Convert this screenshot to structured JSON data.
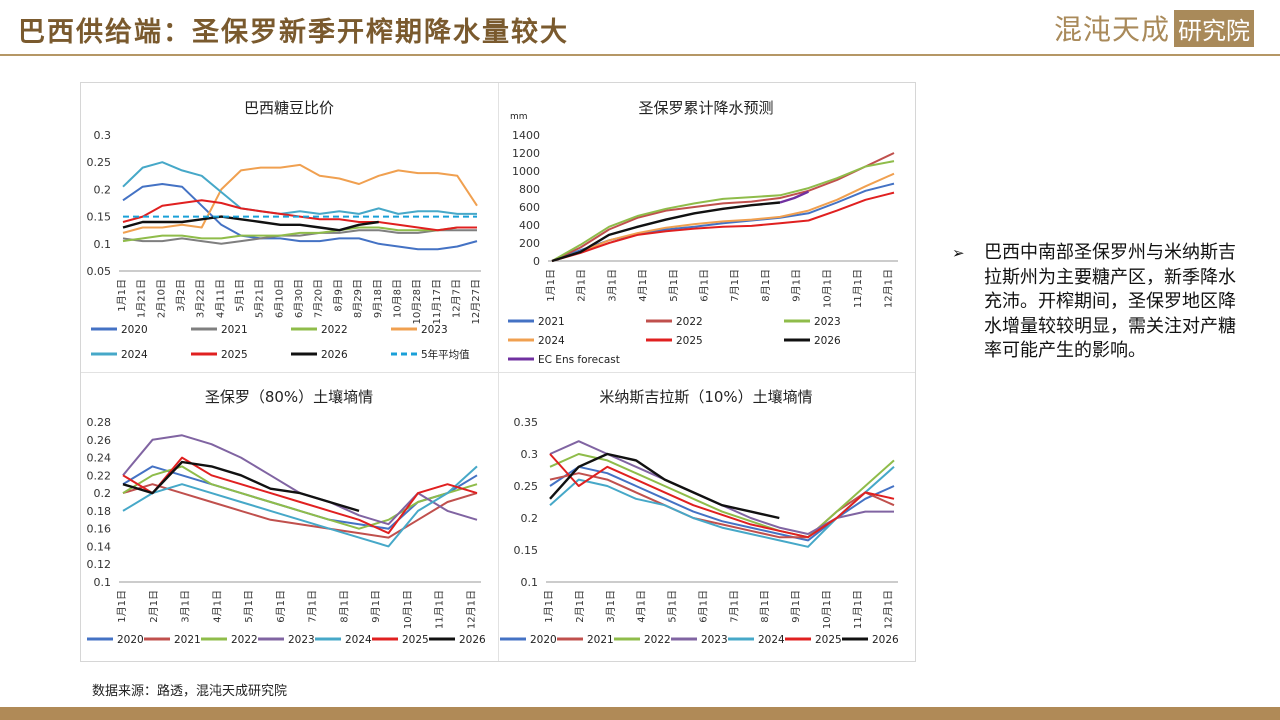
{
  "header": {
    "title": "巴西供给端：圣保罗新季开榨期降水量较大"
  },
  "logo": {
    "main_text": "混沌天成",
    "box_text": "研究院"
  },
  "sidebar": {
    "bullet": "➢",
    "text": "巴西中南部圣保罗州与米纳斯吉拉斯州为主要糖产区，新季降水充沛。开榨期间，圣保罗地区降水增量较较明显，需关注对产糖率可能产生的影响。"
  },
  "footer": {
    "source": "数据来源：路透，混沌天成研究院"
  },
  "colors": {
    "2020": "#4472c4",
    "2021": "#7f7f7f",
    "2022": "#8fbc4a",
    "2023": "#f0a050",
    "2024": "#46a8c8",
    "2025": "#e02020",
    "2026": "#111111",
    "avg5": "#1aa0d8",
    "ec": "#7030a0",
    "p2021": "#c0504d",
    "p2023": "#8064a2"
  },
  "chart_data": [
    {
      "type": "line",
      "title": "巴西糖豆比价",
      "xlabel": "",
      "ylabel": "",
      "ylim": [
        0.05,
        0.3
      ],
      "yticks": [
        "0.3",
        "0.25",
        "0.2",
        "0.15",
        "0.1",
        "0.05"
      ],
      "x_ticks": [
        "1月1日",
        "1月21日",
        "2月10日",
        "3月2日",
        "3月22日",
        "4月11日",
        "5月1日",
        "5月21日",
        "6月10日",
        "6月30日",
        "7月20日",
        "8月9日",
        "8月29日",
        "9月18日",
        "10月8日",
        "10月28日",
        "11月17日",
        "12月7日",
        "12月27日"
      ],
      "legend_position": "bottom",
      "series": [
        {
          "name": "2020",
          "color_key": "2020",
          "values": [
            0.18,
            0.205,
            0.21,
            0.205,
            0.17,
            0.135,
            0.115,
            0.11,
            0.11,
            0.105,
            0.105,
            0.11,
            0.11,
            0.1,
            0.095,
            0.09,
            0.09,
            0.095,
            0.105
          ]
        },
        {
          "name": "2021",
          "color_key": "2021",
          "values": [
            0.11,
            0.105,
            0.105,
            0.11,
            0.105,
            0.1,
            0.105,
            0.11,
            0.115,
            0.115,
            0.12,
            0.12,
            0.125,
            0.125,
            0.12,
            0.12,
            0.125,
            0.125,
            0.125
          ]
        },
        {
          "name": "2022",
          "color_key": "2022",
          "values": [
            0.105,
            0.11,
            0.115,
            0.115,
            0.11,
            0.11,
            0.115,
            0.115,
            0.115,
            0.12,
            0.12,
            0.125,
            0.13,
            0.13,
            0.125,
            0.125,
            0.125,
            0.13,
            0.13
          ]
        },
        {
          "name": "2023",
          "color_key": "2023",
          "values": [
            0.12,
            0.13,
            0.13,
            0.135,
            0.13,
            0.2,
            0.235,
            0.24,
            0.24,
            0.245,
            0.225,
            0.22,
            0.21,
            0.225,
            0.235,
            0.23,
            0.23,
            0.225,
            0.17
          ]
        },
        {
          "name": "2024",
          "color_key": "2024",
          "values": [
            0.205,
            0.24,
            0.25,
            0.235,
            0.225,
            0.195,
            0.165,
            0.16,
            0.155,
            0.16,
            0.155,
            0.16,
            0.155,
            0.165,
            0.155,
            0.16,
            0.16,
            0.155,
            0.155
          ]
        },
        {
          "name": "2025",
          "color_key": "2025",
          "values": [
            0.14,
            0.15,
            0.17,
            0.175,
            0.18,
            0.175,
            0.165,
            0.16,
            0.155,
            0.15,
            0.145,
            0.145,
            0.14,
            0.14,
            0.135,
            0.13,
            0.125,
            0.13,
            0.13
          ]
        },
        {
          "name": "2026",
          "color_key": "2026",
          "values": [
            0.13,
            0.14,
            0.14,
            0.14,
            0.145,
            0.15,
            0.145,
            0.14,
            0.135,
            0.135,
            0.13,
            0.125,
            0.135,
            0.14,
            null,
            null,
            null,
            null,
            null
          ]
        },
        {
          "name": "5年平均值",
          "color_key": "avg5",
          "dashed": true,
          "values": [
            0.15,
            0.15,
            0.15,
            0.15,
            0.15,
            0.15,
            0.15,
            0.15,
            0.15,
            0.15,
            0.15,
            0.15,
            0.15,
            0.15,
            0.15,
            0.15,
            0.15,
            0.15,
            0.15
          ]
        }
      ]
    },
    {
      "type": "line",
      "title": "圣保罗累计降水预测",
      "unit": "mm",
      "xlabel": "",
      "ylabel": "",
      "ylim": [
        0,
        1400
      ],
      "yticks": [
        "1400",
        "1200",
        "1000",
        "800",
        "600",
        "400",
        "200",
        "0"
      ],
      "x_ticks": [
        "1月1日",
        "2月1日",
        "3月1日",
        "4月1日",
        "5月1日",
        "6月1日",
        "7月1日",
        "8月1日",
        "9月1日",
        "10月1日",
        "11月1日",
        "12月1日"
      ],
      "legend_position": "bottom",
      "series": [
        {
          "name": "2021",
          "color_key": "2020",
          "values": [
            0,
            120,
            230,
            300,
            350,
            380,
            420,
            450,
            480,
            530,
            650,
            780,
            860
          ]
        },
        {
          "name": "2022",
          "color_key": "p2021",
          "values": [
            0,
            150,
            350,
            480,
            560,
            600,
            640,
            660,
            700,
            780,
            900,
            1050,
            1200
          ]
        },
        {
          "name": "2023",
          "color_key": "2022",
          "values": [
            0,
            180,
            380,
            500,
            580,
            640,
            690,
            710,
            730,
            810,
            920,
            1050,
            1110
          ]
        },
        {
          "name": "2024",
          "color_key": "2023",
          "values": [
            0,
            100,
            230,
            310,
            370,
            410,
            440,
            460,
            490,
            560,
            680,
            830,
            970
          ]
        },
        {
          "name": "2025",
          "color_key": "2025",
          "values": [
            0,
            90,
            200,
            290,
            330,
            360,
            380,
            390,
            420,
            450,
            560,
            680,
            760
          ]
        },
        {
          "name": "2026",
          "color_key": "2026",
          "values": [
            0,
            100,
            290,
            380,
            460,
            530,
            580,
            620,
            650,
            null,
            null,
            null,
            null
          ]
        },
        {
          "name": "EC Ens forecast",
          "color_key": "ec",
          "values": [
            null,
            null,
            null,
            null,
            null,
            null,
            null,
            null,
            650,
            null,
            null,
            null,
            null
          ],
          "tail": [
            [
              8,
              650
            ],
            [
              8.5,
              700
            ],
            [
              9,
              770
            ]
          ]
        }
      ]
    },
    {
      "type": "line",
      "title": "圣保罗（80%）土壤墒情",
      "xlabel": "",
      "ylabel": "",
      "ylim": [
        0.1,
        0.28
      ],
      "yticks": [
        "0.28",
        "0.26",
        "0.24",
        "0.22",
        "0.2",
        "0.18",
        "0.16",
        "0.14",
        "0.12",
        "0.1"
      ],
      "x_ticks": [
        "1月1日",
        "2月1日",
        "3月1日",
        "4月1日",
        "5月1日",
        "6月1日",
        "7月1日",
        "8月1日",
        "9月1日",
        "10月1日",
        "11月1日",
        "12月1日"
      ],
      "legend_position": "bottom",
      "series": [
        {
          "name": "2020",
          "color_key": "2020",
          "values": [
            0.21,
            0.23,
            0.22,
            0.21,
            0.2,
            0.19,
            0.18,
            0.17,
            0.165,
            0.16,
            0.19,
            0.2,
            0.22
          ]
        },
        {
          "name": "2021",
          "color_key": "p2021",
          "values": [
            0.2,
            0.21,
            0.2,
            0.19,
            0.18,
            0.17,
            0.165,
            0.16,
            0.155,
            0.15,
            0.17,
            0.19,
            0.2
          ]
        },
        {
          "name": "2022",
          "color_key": "2022",
          "values": [
            0.2,
            0.22,
            0.23,
            0.21,
            0.2,
            0.19,
            0.18,
            0.17,
            0.16,
            0.17,
            0.19,
            0.2,
            0.21
          ]
        },
        {
          "name": "2023",
          "color_key": "p2023",
          "values": [
            0.22,
            0.26,
            0.265,
            0.255,
            0.24,
            0.22,
            0.2,
            0.19,
            0.175,
            0.165,
            0.2,
            0.18,
            0.17
          ]
        },
        {
          "name": "2024",
          "color_key": "2024",
          "values": [
            0.18,
            0.2,
            0.21,
            0.2,
            0.19,
            0.18,
            0.17,
            0.16,
            0.15,
            0.14,
            0.18,
            0.2,
            0.23
          ]
        },
        {
          "name": "2025",
          "color_key": "2025",
          "values": [
            0.22,
            0.2,
            0.24,
            0.22,
            0.21,
            0.2,
            0.19,
            0.18,
            0.17,
            0.155,
            0.2,
            0.21,
            0.2
          ]
        },
        {
          "name": "2026",
          "color_key": "2026",
          "values": [
            0.21,
            0.2,
            0.235,
            0.23,
            0.22,
            0.205,
            0.2,
            0.19,
            0.18,
            null,
            null,
            null,
            null
          ]
        }
      ]
    },
    {
      "type": "line",
      "title": "米纳斯吉拉斯（10%）土壤墒情",
      "xlabel": "",
      "ylabel": "",
      "ylim": [
        0.1,
        0.35
      ],
      "yticks": [
        "0.35",
        "0.3",
        "0.25",
        "0.2",
        "0.15",
        "0.1"
      ],
      "x_ticks": [
        "1月1日",
        "2月1日",
        "3月1日",
        "4月1日",
        "5月1日",
        "6月1日",
        "7月1日",
        "8月1日",
        "9月1日",
        "10月1日",
        "11月1日",
        "12月1日"
      ],
      "legend_position": "bottom",
      "series": [
        {
          "name": "2020",
          "color_key": "2020",
          "values": [
            0.25,
            0.28,
            0.27,
            0.25,
            0.23,
            0.21,
            0.195,
            0.185,
            0.175,
            0.165,
            0.2,
            0.23,
            0.25
          ]
        },
        {
          "name": "2021",
          "color_key": "p2021",
          "values": [
            0.26,
            0.27,
            0.26,
            0.24,
            0.22,
            0.2,
            0.19,
            0.18,
            0.17,
            0.17,
            0.21,
            0.24,
            0.22
          ]
        },
        {
          "name": "2022",
          "color_key": "2022",
          "values": [
            0.28,
            0.3,
            0.29,
            0.27,
            0.25,
            0.23,
            0.21,
            0.195,
            0.18,
            0.17,
            0.21,
            0.25,
            0.29
          ]
        },
        {
          "name": "2023",
          "color_key": "p2023",
          "values": [
            0.3,
            0.32,
            0.3,
            0.28,
            0.26,
            0.24,
            0.22,
            0.2,
            0.185,
            0.175,
            0.2,
            0.21,
            0.21
          ]
        },
        {
          "name": "2024",
          "color_key": "2024",
          "values": [
            0.22,
            0.26,
            0.25,
            0.23,
            0.22,
            0.2,
            0.185,
            0.175,
            0.165,
            0.155,
            0.2,
            0.24,
            0.28
          ]
        },
        {
          "name": "2025",
          "color_key": "2025",
          "values": [
            0.3,
            0.25,
            0.28,
            0.26,
            0.24,
            0.22,
            0.205,
            0.19,
            0.18,
            0.17,
            0.2,
            0.24,
            0.23
          ]
        },
        {
          "name": "2026",
          "color_key": "2026",
          "values": [
            0.23,
            0.28,
            0.3,
            0.29,
            0.26,
            0.24,
            0.22,
            0.21,
            0.2,
            null,
            null,
            null,
            null
          ]
        }
      ]
    }
  ]
}
